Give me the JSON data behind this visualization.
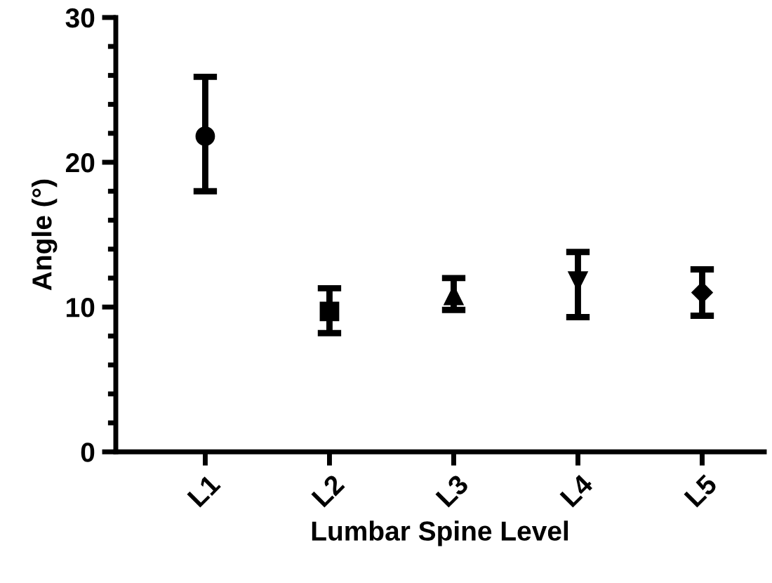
{
  "chart_data": {
    "type": "scatter",
    "xlabel": "Lumbar Spine Level",
    "ylabel": "Angle (°)",
    "categories": [
      "L1",
      "L2",
      "L3",
      "L4",
      "L5"
    ],
    "series": [
      {
        "color": "#000000",
        "marker": "circle",
        "values": [
          21.8,
          null,
          null,
          null,
          null
        ],
        "errors": [
          [
            18.0,
            25.9
          ],
          null,
          null,
          null,
          null
        ]
      },
      {
        "color": "#000000",
        "marker": "square",
        "values": [
          null,
          9.7,
          null,
          null,
          null
        ],
        "errors": [
          null,
          [
            8.2,
            11.3
          ],
          null,
          null,
          null
        ]
      },
      {
        "color": "#000000",
        "marker": "triangle",
        "values": [
          null,
          null,
          10.8,
          null,
          null
        ],
        "errors": [
          null,
          null,
          [
            9.8,
            12.0
          ],
          null,
          null
        ]
      },
      {
        "color": "#000000",
        "marker": "triangle_down",
        "values": [
          null,
          null,
          null,
          11.8,
          null
        ],
        "errors": [
          null,
          null,
          null,
          [
            9.3,
            13.8
          ],
          null
        ]
      },
      {
        "color": "#000000",
        "marker": "diamond",
        "values": [
          null,
          null,
          null,
          null,
          11.0
        ],
        "errors": [
          null,
          null,
          null,
          null,
          [
            9.4,
            12.6
          ]
        ]
      }
    ],
    "ylim": [
      0,
      30
    ],
    "yticks": [
      0,
      {
        "value": 2,
        "label": null
      },
      {
        "value": 4,
        "label": null
      },
      {
        "value": 6,
        "label": null
      },
      {
        "value": 8,
        "label": null
      },
      10,
      {
        "value": 12,
        "label": null
      },
      {
        "value": 14,
        "label": null
      },
      {
        "value": 16,
        "label": null
      },
      {
        "value": 18,
        "label": null
      },
      20,
      {
        "value": 22,
        "label": null
      },
      {
        "value": 24,
        "label": null
      },
      {
        "value": 26,
        "label": null
      },
      {
        "value": 28,
        "label": null
      },
      30
    ],
    "grid": false,
    "legend": false
  }
}
